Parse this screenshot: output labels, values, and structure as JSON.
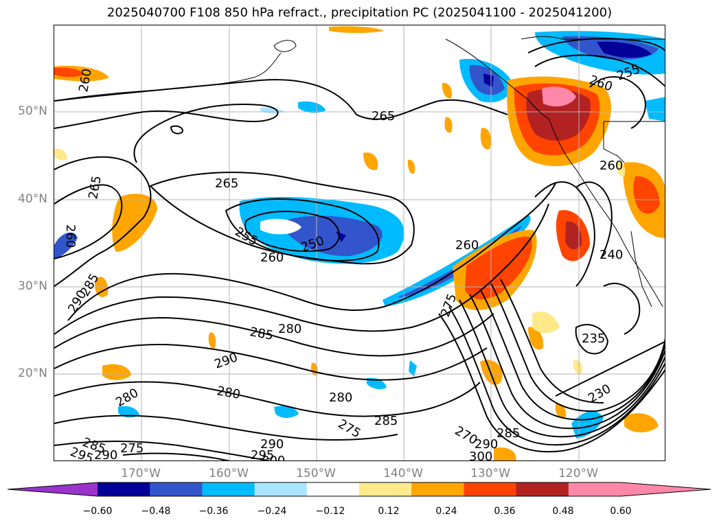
{
  "title": "2025040700 F108 850 hPa refract., precipitation PC (2025041100 - 2025041200)",
  "lat_labels": [
    "50°N",
    "40°N",
    "30°N",
    "20°N"
  ],
  "lon_labels": [
    "170°W",
    "160°W",
    "150°W",
    "140°W",
    "130°W",
    "120°W"
  ],
  "colorbar": {
    "ticks": [
      "−0.60",
      "−0.48",
      "−0.36",
      "−0.24",
      "−0.12",
      "0.12",
      "0.24",
      "0.36",
      "0.48",
      "0.60"
    ],
    "colors": [
      "#9933cc",
      "#000099",
      "#3355cc",
      "#00bbff",
      "#aae4ff",
      "#ffffff",
      "#ffe98a",
      "#ffa500",
      "#ff4400",
      "#b22222",
      "#ff88aa",
      "#ff88aa"
    ]
  },
  "contour_labels": [
    {
      "text": "265",
      "name": "contour-label-265-north"
    },
    {
      "text": "265",
      "name": "contour-label-265-central"
    },
    {
      "text": "260",
      "name": "contour-label-260-nw"
    },
    {
      "text": "260",
      "name": "contour-label-260-ne"
    },
    {
      "text": "255",
      "name": "contour-label-255-ne"
    },
    {
      "text": "255",
      "name": "contour-label-255-low"
    },
    {
      "text": "250",
      "name": "contour-label-250"
    },
    {
      "text": "260",
      "name": "contour-label-260-low"
    },
    {
      "text": "260",
      "name": "contour-label-260-east"
    },
    {
      "text": "265",
      "name": "contour-label-265-west"
    },
    {
      "text": "285",
      "name": "contour-label-285-mid"
    },
    {
      "text": "280",
      "name": "contour-label-280-mid"
    },
    {
      "text": "290",
      "name": "contour-label-290-mid"
    },
    {
      "text": "280",
      "name": "contour-label-280-south"
    },
    {
      "text": "280",
      "name": "contour-label-280-sw"
    },
    {
      "text": "280",
      "name": "contour-label-280-se"
    },
    {
      "text": "285",
      "name": "contour-label-285-south"
    },
    {
      "text": "275",
      "name": "contour-label-275-south"
    },
    {
      "text": "270",
      "name": "contour-label-270-south"
    },
    {
      "text": "290",
      "name": "contour-label-290-south"
    },
    {
      "text": "285",
      "name": "contour-label-285-se"
    },
    {
      "text": "300",
      "name": "contour-label-300-south"
    },
    {
      "text": "290",
      "name": "contour-label-290-bottom"
    },
    {
      "text": "295",
      "name": "contour-label-295-bottom"
    },
    {
      "text": "300",
      "name": "contour-label-300-bottom"
    },
    {
      "text": "285",
      "name": "contour-label-285-sw-corner"
    },
    {
      "text": "295",
      "name": "contour-label-295-sw-corner"
    },
    {
      "text": "290",
      "name": "contour-label-290-sw-corner"
    },
    {
      "text": "275",
      "name": "contour-label-275-sw-corner"
    },
    {
      "text": "285",
      "name": "contour-label-285-west"
    },
    {
      "text": "290",
      "name": "contour-label-290-west"
    },
    {
      "text": "260",
      "name": "contour-label-260-west"
    },
    {
      "text": "240",
      "name": "contour-label-240"
    },
    {
      "text": "235",
      "name": "contour-label-235"
    },
    {
      "text": "230",
      "name": "contour-label-230"
    },
    {
      "text": "260",
      "name": "contour-label-260-coast"
    },
    {
      "text": "275",
      "name": "contour-label-275-front"
    }
  ]
}
